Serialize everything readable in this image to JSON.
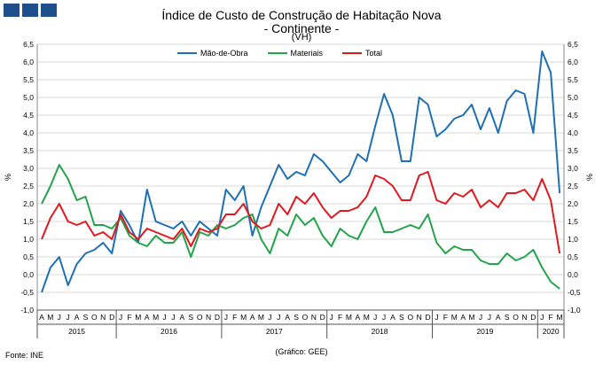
{
  "header": {
    "title": "Índice de Custo de Construção de Habitação Nova",
    "subtitle": "- Continente -",
    "unit": "(VH)"
  },
  "footer": {
    "source": "Fonte: INE",
    "credit": "(Gráfico: GEE)"
  },
  "colors": {
    "mao_de_obra": "#1f6fb5",
    "materiais": "#22a44a",
    "total": "#e0191f",
    "logo": "#1f4e8c"
  },
  "chart_data": {
    "type": "line",
    "ylabel_left": "%",
    "ylabel_right": "%",
    "ylim": [
      -1.0,
      6.5
    ],
    "y_ticks": [
      "-1,0",
      "-0,5",
      "0,0",
      "0,5",
      "1,0",
      "1,5",
      "2,0",
      "2,5",
      "3,0",
      "3,5",
      "4,0",
      "4,5",
      "5,0",
      "5,5",
      "6,0",
      "6,5"
    ],
    "grid": "horizontal",
    "legend_position": "top",
    "x_months": [
      "A",
      "M",
      "J",
      "J",
      "A",
      "S",
      "O",
      "N",
      "D",
      "J",
      "F",
      "M",
      "A",
      "M",
      "J",
      "J",
      "A",
      "S",
      "O",
      "N",
      "D",
      "J",
      "F",
      "M",
      "A",
      "M",
      "J",
      "J",
      "A",
      "S",
      "O",
      "N",
      "D",
      "J",
      "F",
      "M",
      "A",
      "M",
      "J",
      "J",
      "A",
      "S",
      "O",
      "N",
      "D",
      "J",
      "F",
      "M",
      "A",
      "M",
      "J",
      "J",
      "A",
      "S",
      "O",
      "N",
      "D",
      "J",
      "F",
      "M"
    ],
    "year_groups": [
      {
        "label": "2015",
        "count": 9
      },
      {
        "label": "2016",
        "count": 12
      },
      {
        "label": "2017",
        "count": 12
      },
      {
        "label": "2018",
        "count": 12
      },
      {
        "label": "2019",
        "count": 12
      },
      {
        "label": "2020",
        "count": 3
      }
    ],
    "series": [
      {
        "name": "Mão-de-Obra",
        "color": "#1f6fb5",
        "values": [
          -0.5,
          0.2,
          0.5,
          -0.3,
          0.3,
          0.6,
          0.7,
          0.9,
          0.6,
          1.8,
          1.4,
          0.9,
          2.4,
          1.5,
          1.4,
          1.3,
          1.5,
          1.1,
          1.5,
          1.3,
          1.1,
          2.4,
          2.1,
          2.5,
          1.1,
          1.9,
          2.5,
          3.1,
          2.7,
          2.9,
          2.8,
          3.4,
          3.2,
          2.9,
          2.6,
          2.8,
          3.4,
          3.2,
          4.2,
          5.1,
          4.5,
          3.2,
          3.2,
          5.0,
          4.8,
          3.9,
          4.1,
          4.4,
          4.5,
          4.8,
          4.1,
          4.7,
          4.0,
          4.9,
          5.2,
          5.1,
          4.0,
          6.3,
          5.7,
          2.3
        ]
      },
      {
        "name": "Materiais",
        "color": "#22a44a",
        "values": [
          2.0,
          2.5,
          3.1,
          2.7,
          2.1,
          2.2,
          1.4,
          1.4,
          1.3,
          1.6,
          1.1,
          0.9,
          0.8,
          1.1,
          0.9,
          0.9,
          1.2,
          0.5,
          1.2,
          1.1,
          1.4,
          1.3,
          1.4,
          1.6,
          1.7,
          1.0,
          0.6,
          1.3,
          1.1,
          1.7,
          1.4,
          1.6,
          1.1,
          0.8,
          1.3,
          1.1,
          1.0,
          1.5,
          1.9,
          1.2,
          1.2,
          1.3,
          1.4,
          1.3,
          1.7,
          0.9,
          0.6,
          0.8,
          0.7,
          0.7,
          0.4,
          0.3,
          0.3,
          0.6,
          0.4,
          0.5,
          0.7,
          0.2,
          -0.2,
          -0.4
        ]
      },
      {
        "name": "Total",
        "color": "#e0191f",
        "values": [
          1.0,
          1.6,
          2.0,
          1.5,
          1.4,
          1.5,
          1.1,
          1.2,
          1.0,
          1.7,
          1.2,
          1.0,
          1.3,
          1.2,
          1.1,
          1.0,
          1.3,
          0.8,
          1.3,
          1.2,
          1.3,
          1.7,
          1.7,
          2.0,
          1.5,
          1.3,
          1.4,
          2.0,
          1.7,
          2.2,
          2.0,
          2.3,
          1.9,
          1.6,
          1.8,
          1.8,
          1.9,
          2.2,
          2.8,
          2.7,
          2.5,
          2.1,
          2.1,
          2.8,
          2.9,
          2.1,
          2.0,
          2.3,
          2.2,
          2.4,
          1.9,
          2.1,
          1.9,
          2.3,
          2.3,
          2.4,
          2.1,
          2.7,
          2.1,
          0.6
        ]
      }
    ]
  }
}
